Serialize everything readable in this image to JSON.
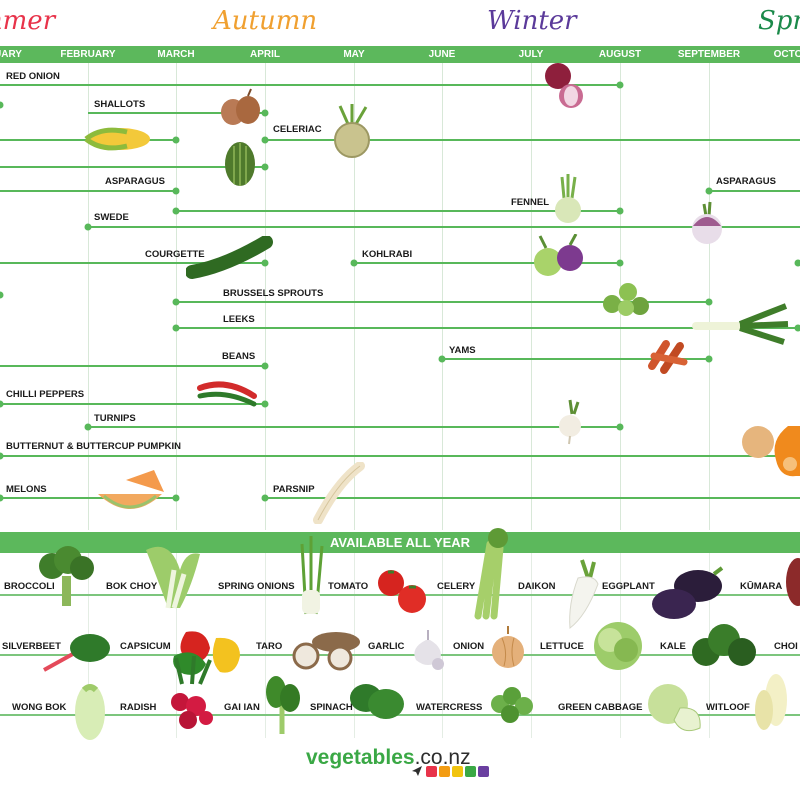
{
  "seasons": {
    "summer": "mmer",
    "autumn": "Autumn",
    "winter": "Winter",
    "spring": "Spr"
  },
  "months": [
    "UARY",
    "FEBRUARY",
    "MARCH",
    "APRIL",
    "MAY",
    "JUNE",
    "JULY",
    "AUGUST",
    "SEPTEMBER",
    "OCTO"
  ],
  "seasonal": {
    "red_onion": "RED ONION",
    "shallots": "SHALLOTS",
    "celeriac": "CELERIAC",
    "asparagus": "ASPARAGUS",
    "asparagus_2": "ASPARAGUS",
    "swede": "SWEDE",
    "fennel": "FENNEL",
    "courgette": "COURGETTE",
    "kohlrabi": "KOHLRABI",
    "brussels_sprouts": "BRUSSELS SPROUTS",
    "leeks": "LEEKS",
    "beans": "BEANS",
    "yams": "YAMS",
    "chilli_peppers": "CHILLI PEPPERS",
    "turnips": "TURNIPS",
    "butternut": "BUTTERNUT & BUTTERCUP PUMPKIN",
    "melons": "MELONS",
    "parsnip": "PARSNIP"
  },
  "all_year": {
    "title": "AVAILABLE ALL YEAR",
    "row1": [
      "BROCCOLI",
      "BOK CHOY",
      "SPRING ONIONS",
      "TOMATO",
      "CELERY",
      "DAIKON",
      "EGGPLANT",
      "KŪMARA"
    ],
    "row2": [
      "SILVERBEET",
      "CAPSICUM",
      "TARO",
      "GARLIC",
      "ONION",
      "LETTUCE",
      "KALE",
      "CHOI"
    ],
    "row3": [
      "WONG BOK",
      "RADISH",
      "GAI IAN",
      "SPINACH",
      "WATERCRESS",
      "GREEN CABBAGE",
      "WITLOOF"
    ]
  },
  "logo": {
    "brand": "vegetables",
    "domain": ".co.nz"
  },
  "colors": {
    "accent": "#5cb85c",
    "summer": "#e8334a",
    "autumn": "#f0a030",
    "winter": "#5b3a9a",
    "spring": "#1b8a4a",
    "logo_squares": [
      "#e8334a",
      "#f39c12",
      "#f1c40f",
      "#3aa845",
      "#6a3fa0"
    ]
  }
}
